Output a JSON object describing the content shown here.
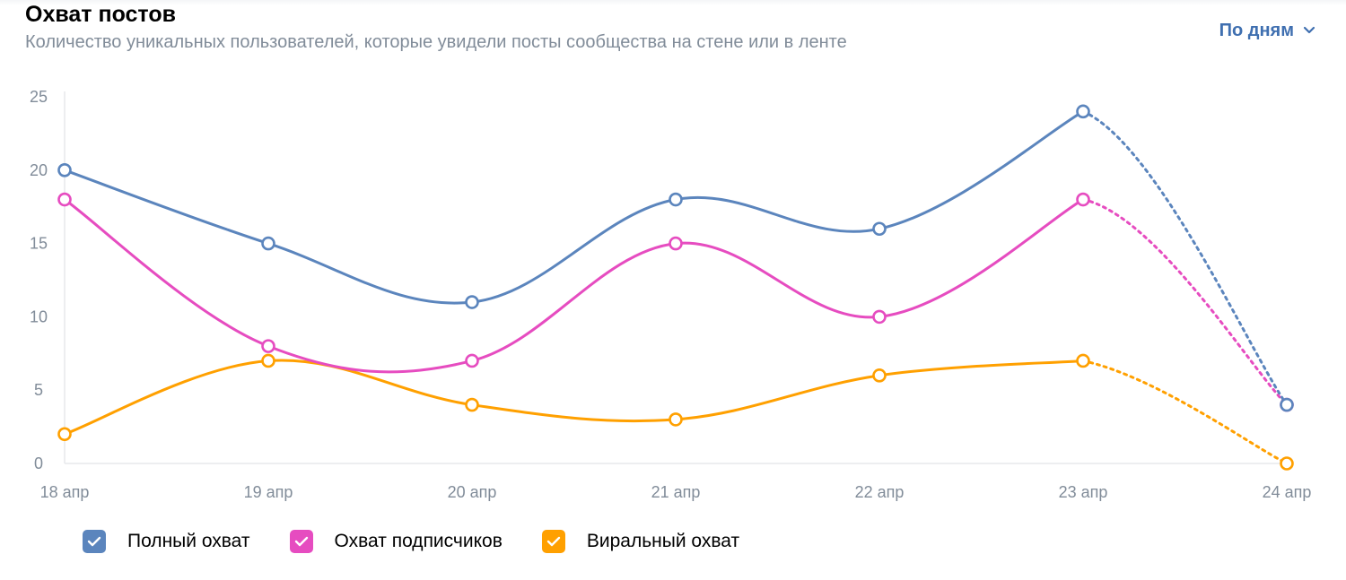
{
  "header": {
    "title": "Охват постов",
    "subtitle": "Количество уникальных пользователей, которые увидели посты сообщества на стене или в ленте",
    "period_label": "По дням",
    "period_icon": "chevron-down-icon"
  },
  "colors": {
    "total": "#5b85bd",
    "subscribers": "#e64cc0",
    "viral": "#ffa000",
    "grid": "#e7e8ec",
    "axis_text": "#818c99"
  },
  "chart_data": {
    "type": "line",
    "title": "Охват постов",
    "categories": [
      "18 апр",
      "19 апр",
      "20 апр",
      "21 апр",
      "22 апр",
      "23 апр",
      "24 апр"
    ],
    "ylim": [
      0,
      25
    ],
    "yticks": [
      0,
      5,
      10,
      15,
      20,
      25
    ],
    "grid": false,
    "legend_position": "bottom-left",
    "last_segment_dotted": true,
    "series": [
      {
        "name": "Полный охват",
        "values": [
          20,
          15,
          11,
          18,
          16,
          24,
          4
        ],
        "color": "#5b85bd"
      },
      {
        "name": "Охват подписчиков",
        "values": [
          18,
          8,
          7,
          15,
          10,
          18,
          4
        ],
        "color": "#e64cc0"
      },
      {
        "name": "Виральный охват",
        "values": [
          2,
          7,
          4,
          3,
          6,
          7,
          0
        ],
        "color": "#ffa000"
      }
    ]
  },
  "legend": [
    {
      "label": "Полный охват",
      "color": "#5b85bd",
      "checked": true
    },
    {
      "label": "Охват подписчиков",
      "color": "#e64cc0",
      "checked": true
    },
    {
      "label": "Виральный охват",
      "color": "#ffa000",
      "checked": true
    }
  ]
}
